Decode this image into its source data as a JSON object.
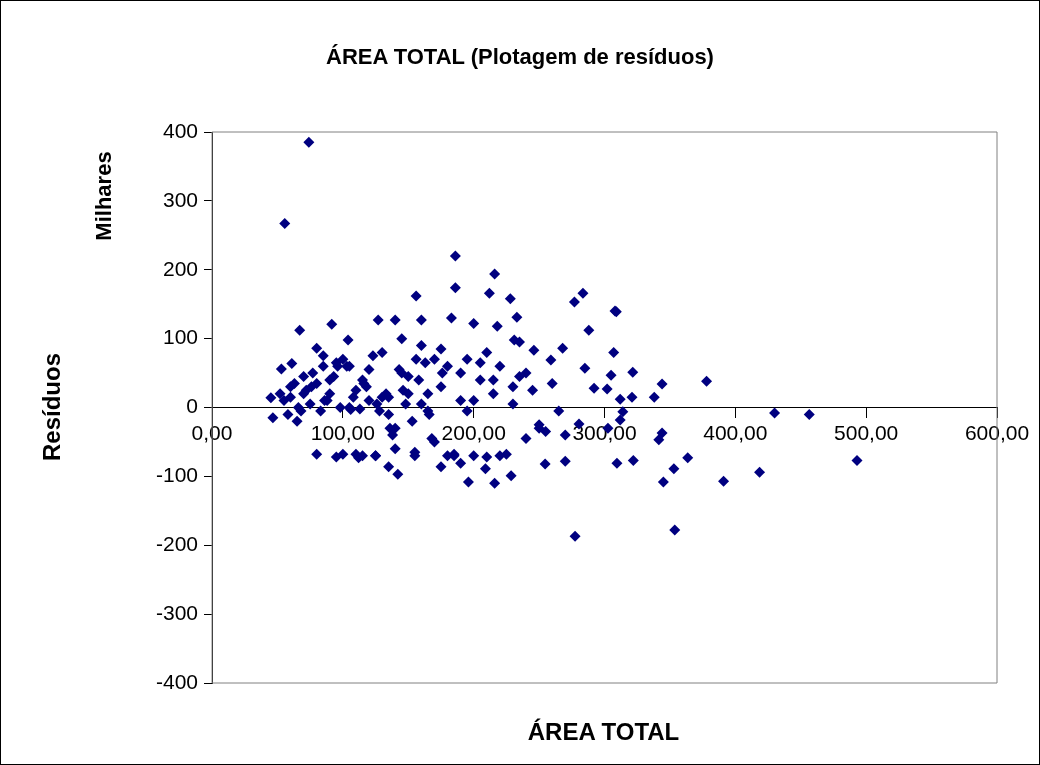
{
  "chart_data": {
    "type": "scatter",
    "title": "ÁREA TOTAL (Plotagem de resíduos)",
    "xlabel": "ÁREA TOTAL",
    "ylabel": "Resíduos",
    "annotations": [
      "Milhares"
    ],
    "xlim": [
      0,
      600
    ],
    "ylim": [
      -400,
      400
    ],
    "xticks": [
      {
        "value": 0,
        "label": "0,00"
      },
      {
        "value": 100,
        "label": "100,00"
      },
      {
        "value": 200,
        "label": "200,00"
      },
      {
        "value": 300,
        "label": "300,00"
      },
      {
        "value": 400,
        "label": "400,00"
      },
      {
        "value": 500,
        "label": "500,00"
      },
      {
        "value": 600,
        "label": "600,00"
      }
    ],
    "yticks": [
      -400,
      -300,
      -200,
      -100,
      0,
      100,
      200,
      300,
      400
    ],
    "grid": false,
    "legend": false,
    "marker": "diamond",
    "series": [
      {
        "color": "#000080",
        "x": [
          74,
          55.6,
          186,
          216,
          156,
          186,
          212,
          228,
          283.5,
          277,
          308,
          233,
          67,
          288,
          307,
          91.5,
          218,
          268,
          309,
          321.6,
          305,
          302,
          344,
          378,
          338,
          321,
          312,
          314,
          312,
          302.6,
          430,
          456.5,
          344,
          341.5,
          309.5,
          322,
          363.6,
          353,
          345,
          391,
          418.5,
          493,
          353.7,
          277.5,
          196,
          216,
          142,
          228.6,
          209,
          254.6,
          270,
          280.5,
          285,
          292,
          46.5,
          45,
          53,
          61,
          80,
          112,
          135,
          175,
          190,
          104,
          127,
          140,
          160,
          183,
          200,
          231,
          246,
          259,
          55,
          60,
          65,
          70,
          75,
          80,
          85,
          90,
          95,
          100,
          105,
          110,
          115,
          120,
          125,
          130,
          135,
          140,
          145,
          150,
          155,
          160,
          165,
          170,
          175,
          180,
          185,
          190,
          195,
          200,
          205,
          210,
          215,
          220,
          225,
          230,
          235,
          240,
          245,
          250,
          60,
          70,
          80,
          90,
          100,
          110,
          120,
          130,
          140,
          150,
          160,
          170,
          180,
          190,
          200,
          210,
          220,
          230,
          240,
          250,
          260,
          270,
          95,
          115,
          135,
          155,
          175,
          195,
          215,
          235,
          255,
          265,
          85,
          105,
          125,
          145,
          165,
          185,
          205,
          52,
          58,
          63,
          68,
          72,
          77,
          83,
          88,
          93,
          98,
          103,
          108,
          113,
          118,
          123,
          128,
          133,
          138,
          143,
          148,
          153,
          158,
          163,
          168,
          66,
          76,
          86,
          96,
          106,
          116,
          126,
          136,
          146,
          156,
          166,
          176
        ],
        "values": [
          385,
          267,
          220,
          194,
          162,
          174,
          166,
          158,
          166,
          153,
          140,
          131,
          112,
          112,
          80,
          121,
          118,
          86,
          139,
          51,
          47,
          27,
          34,
          38,
          15,
          15,
          12,
          -6,
          -18,
          -30,
          -8,
          -10,
          -37,
          -47,
          -81,
          -77,
          -73,
          -89,
          -108,
          -107,
          -94,
          -77,
          -178,
          -187,
          -108,
          -110,
          -97,
          -99,
          -89,
          -82,
          -78,
          -24,
          57,
          28,
          -15,
          14,
          56,
          64,
          86,
          -73,
          -86,
          -86,
          -81,
          98,
          127,
          127,
          127,
          130,
          122,
          98,
          83,
          69,
          10,
          30,
          -20,
          45,
          5,
          -68,
          60,
          20,
          -72,
          70,
          0,
          -68,
          40,
          10,
          -70,
          80,
          -10,
          -60,
          50,
          20,
          -65,
          90,
          -5,
          -50,
          30,
          60,
          -68,
          10,
          70,
          -70,
          40,
          -72,
          20,
          60,
          -68,
          5,
          45,
          -45,
          25,
          -30,
          15,
          20,
          35,
          40,
          -68,
          25,
          55,
          15,
          -30,
          45,
          5,
          70,
          -70,
          50,
          10,
          80,
          -70,
          30,
          50,
          -25,
          35,
          -40,
          65,
          -70,
          15,
          -70,
          85,
          -5,
          40,
          95,
          -35,
          -5,
          75,
          60,
          -70,
          100,
          20,
          -70,
          65,
          20,
          -10,
          35,
          -5,
          25,
          50,
          -5,
          10,
          45,
          0,
          60,
          15,
          -2,
          30,
          75,
          -5,
          20,
          -40,
          55,
          5,
          -20,
          40,
          65,
          -45,
          0,
          30,
          10,
          60,
          -3,
          35,
          5,
          -30,
          25,
          70,
          -10,
          50
        ]
      }
    ]
  }
}
